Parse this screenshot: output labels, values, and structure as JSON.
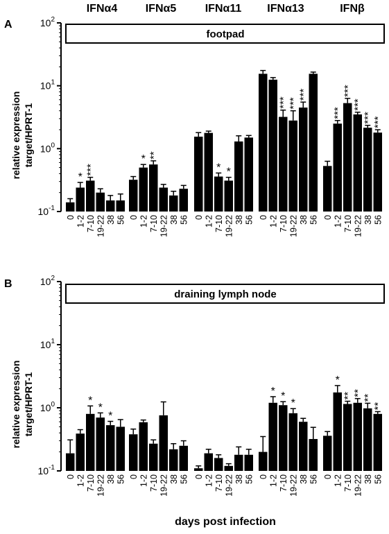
{
  "figure": {
    "gene_labels": [
      "IFNα4",
      "IFNα5",
      "IFNα11",
      "IFNα13",
      "IFNβ"
    ],
    "xlabel": "days post infection",
    "colors": {
      "bar": "#000000",
      "background": "#ffffff"
    }
  },
  "chart_data": [
    {
      "type": "bar",
      "panel": "A",
      "title": "footpad",
      "ylabel": [
        "relative expression",
        "target/HPRT-1"
      ],
      "yscale": "log",
      "ylim": [
        0.1,
        100
      ],
      "yticks": [
        {
          "base": "10",
          "exp": "2"
        },
        {
          "base": "10",
          "exp": "1"
        },
        {
          "base": "10",
          "exp": "0"
        },
        {
          "base": "10",
          "exp": "-1"
        }
      ],
      "categories": [
        "0",
        "1-2",
        "7-10",
        "19-22",
        "38",
        "56"
      ],
      "series": [
        {
          "name": "IFNα4",
          "values": [
            0.14,
            0.24,
            0.31,
            0.2,
            0.15,
            0.15
          ],
          "errors": [
            0.02,
            0.05,
            0.04,
            0.03,
            0.03,
            0.04
          ],
          "sig": [
            "",
            "*",
            "***",
            "",
            "",
            ""
          ]
        },
        {
          "name": "IFNα5",
          "values": [
            0.32,
            0.5,
            0.56,
            0.24,
            0.18,
            0.23
          ],
          "errors": [
            0.04,
            0.06,
            0.08,
            0.03,
            0.03,
            0.03
          ],
          "sig": [
            "",
            "*",
            "**",
            "",
            "",
            ""
          ]
        },
        {
          "name": "IFNα11",
          "values": [
            1.55,
            1.78,
            0.36,
            0.31,
            1.3,
            1.5
          ],
          "errors": [
            0.25,
            0.12,
            0.05,
            0.04,
            0.3,
            0.12
          ],
          "sig": [
            "",
            "",
            "*",
            "*",
            "",
            ""
          ]
        },
        {
          "name": "IFNα13",
          "values": [
            15.5,
            12.5,
            3.2,
            2.8,
            4.5,
            15.5
          ],
          "errors": [
            2.0,
            1.0,
            0.9,
            1.2,
            1.0,
            1.0
          ],
          "sig": [
            "",
            "",
            "***",
            "***",
            "***",
            ""
          ]
        },
        {
          "name": "IFNβ",
          "values": [
            0.53,
            2.5,
            5.3,
            3.5,
            2.15,
            1.8
          ],
          "errors": [
            0.1,
            0.3,
            1.0,
            0.3,
            0.2,
            0.2
          ],
          "sig": [
            "",
            "***",
            "***",
            "***",
            "***",
            "***"
          ]
        }
      ]
    },
    {
      "type": "bar",
      "panel": "B",
      "title": "draining lymph node",
      "ylabel": [
        "relative expression",
        "target/HPRT-1"
      ],
      "yscale": "log",
      "ylim": [
        0.1,
        100
      ],
      "yticks": [
        {
          "base": "10",
          "exp": "2"
        },
        {
          "base": "10",
          "exp": "1"
        },
        {
          "base": "10",
          "exp": "0"
        },
        {
          "base": "10",
          "exp": "-1"
        }
      ],
      "categories": [
        "0",
        "1-2",
        "7-10",
        "19-22",
        "38",
        "56"
      ],
      "series": [
        {
          "name": "IFNα4",
          "values": [
            0.19,
            0.39,
            0.8,
            0.7,
            0.53,
            0.5
          ],
          "errors": [
            0.12,
            0.06,
            0.27,
            0.13,
            0.08,
            0.15
          ],
          "sig": [
            "",
            "",
            "*",
            "*",
            "*",
            ""
          ]
        },
        {
          "name": "IFNα5",
          "values": [
            0.38,
            0.59,
            0.27,
            0.76,
            0.22,
            0.25
          ],
          "errors": [
            0.08,
            0.05,
            0.04,
            0.48,
            0.05,
            0.05
          ],
          "sig": [
            "",
            "",
            "",
            "",
            "",
            ""
          ]
        },
        {
          "name": "IFNα11",
          "values": [
            0.11,
            0.19,
            0.16,
            0.12,
            0.18,
            0.18
          ],
          "errors": [
            0.01,
            0.03,
            0.02,
            0.01,
            0.06,
            0.04
          ],
          "sig": [
            "",
            "",
            "",
            "",
            "",
            ""
          ]
        },
        {
          "name": "IFNα13",
          "values": [
            0.2,
            1.2,
            1.1,
            0.82,
            0.6,
            0.32
          ],
          "errors": [
            0.15,
            0.3,
            0.15,
            0.15,
            0.08,
            0.17
          ],
          "sig": [
            "",
            "*",
            "*",
            "*",
            "",
            ""
          ]
        },
        {
          "name": "IFNβ",
          "values": [
            0.36,
            1.75,
            1.15,
            1.2,
            0.98,
            0.8
          ],
          "errors": [
            0.06,
            0.5,
            0.12,
            0.2,
            0.2,
            0.07
          ],
          "sig": [
            "",
            "*",
            "**",
            "**",
            "**",
            "**"
          ]
        }
      ]
    }
  ]
}
